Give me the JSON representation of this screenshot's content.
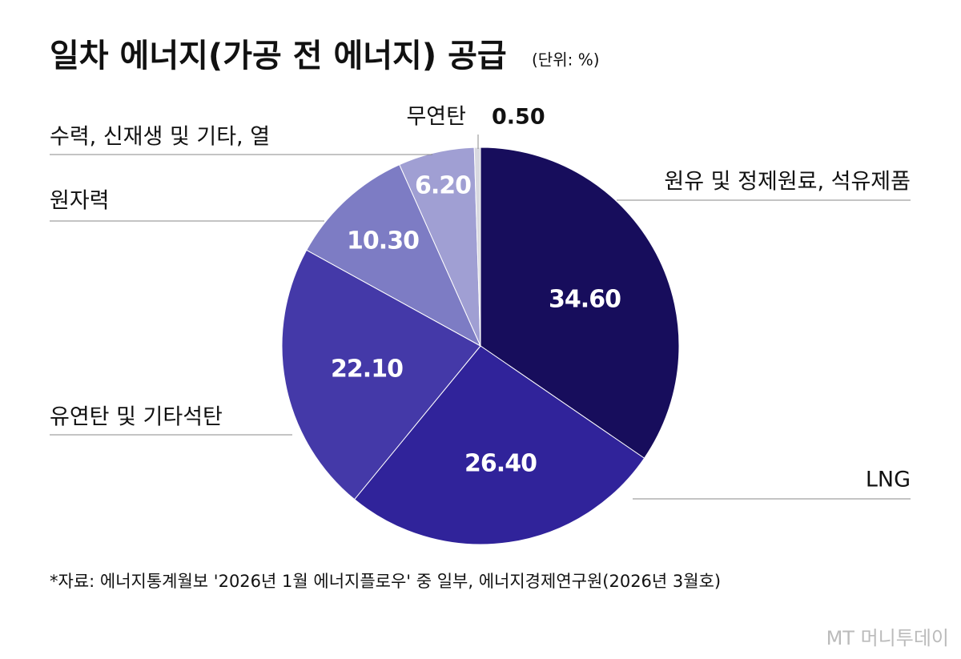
{
  "chart_data": {
    "type": "pie",
    "title": "일차 에너지(가공 전 에너지) 공급",
    "subtitle": "(단위: %)",
    "categories": [
      "원유 및 정제원료, 석유제품",
      "LNG",
      "유연탄 및 기타석탄",
      "원자력",
      "수력, 신재생 및 기타, 열",
      "무연탄"
    ],
    "values": [
      34.6,
      26.4,
      22.1,
      10.3,
      6.2,
      0.5
    ],
    "value_labels": [
      "34.60",
      "26.40",
      "22.10",
      "10.30",
      "6.20",
      "0.50"
    ],
    "colors": [
      "#170d5c",
      "#30239a",
      "#4439a8",
      "#7d7cc4",
      "#a09fd3",
      "#d8d8e0"
    ],
    "source": "*자료: 에너지통계월보 '2026년 1월 에너지플로우' 중 일부, 에너지경제연구원(2026년 3월호)",
    "watermark": "MT 머니투데이"
  }
}
